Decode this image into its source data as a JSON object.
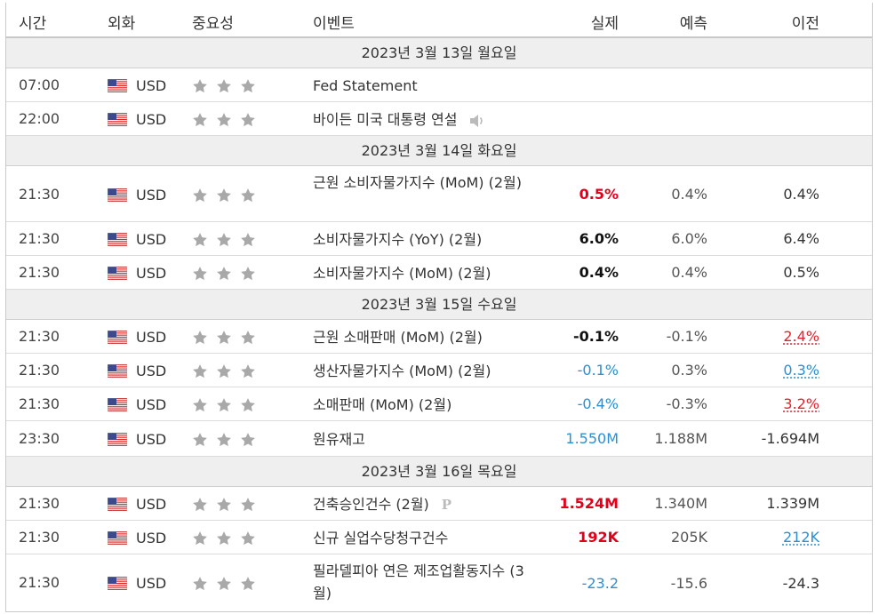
{
  "header": {
    "time": "시간",
    "currency": "외화",
    "importance": "중요성",
    "event": "이벤트",
    "actual": "실제",
    "forecast": "예측",
    "previous": "이전"
  },
  "days": [
    {
      "date": "2023년 3월 13일 월요일"
    },
    {
      "date": "2023년 3월 14일 화요일"
    },
    {
      "date": "2023년 3월 15일 수요일"
    },
    {
      "date": "2023년 3월 16일 목요일"
    }
  ],
  "events": [
    {
      "time": "07:00",
      "currency": "USD",
      "flag_icon": "us-flag-icon",
      "stars": 3,
      "name": "Fed Statement",
      "actual": "",
      "forecast": "",
      "previous": ""
    },
    {
      "time": "22:00",
      "currency": "USD",
      "flag_icon": "us-flag-icon",
      "stars": 3,
      "name": "바이든 미국 대통령 연설",
      "icon": "speaker-icon",
      "actual": "",
      "forecast": "",
      "previous": ""
    },
    {
      "time": "21:30",
      "currency": "USD",
      "flag_icon": "us-flag-icon",
      "stars": 3,
      "name": "근원 소비자물가지수 (MoM) (2월)",
      "actual": "0.5%",
      "actual_color": "#e0001c",
      "forecast": "0.4%",
      "previous": "0.4%"
    },
    {
      "time": "21:30",
      "currency": "USD",
      "flag_icon": "us-flag-icon",
      "stars": 3,
      "name": "소비자물가지수 (YoY) (2월)",
      "actual": "6.0%",
      "forecast": "6.0%",
      "previous": "6.4%"
    },
    {
      "time": "21:30",
      "currency": "USD",
      "flag_icon": "us-flag-icon",
      "stars": 3,
      "name": "소비자물가지수 (MoM) (2월)",
      "actual": "0.4%",
      "forecast": "0.4%",
      "previous": "0.5%"
    },
    {
      "time": "21:30",
      "currency": "USD",
      "flag_icon": "us-flag-icon",
      "stars": 3,
      "name": "근원 소매판매 (MoM) (2월)",
      "actual": "-0.1%",
      "forecast": "-0.1%",
      "previous": "2.4%",
      "previous_color": "#e0232e"
    },
    {
      "time": "21:30",
      "currency": "USD",
      "flag_icon": "us-flag-icon",
      "stars": 3,
      "name": "생산자물가지수 (MoM) (2월)",
      "actual": "-0.1%",
      "actual_color": "#2a8fd4",
      "forecast": "0.3%",
      "previous": "0.3%",
      "previous_color": "#2a8fd4"
    },
    {
      "time": "21:30",
      "currency": "USD",
      "flag_icon": "us-flag-icon",
      "stars": 3,
      "name": "소매판매 (MoM) (2월)",
      "actual": "-0.4%",
      "actual_color": "#2a8fd4",
      "forecast": "-0.3%",
      "previous": "3.2%",
      "previous_color": "#e0232e"
    },
    {
      "time": "23:30",
      "currency": "USD",
      "flag_icon": "us-flag-icon",
      "stars": 3,
      "name": "원유재고",
      "actual": "1.550M",
      "actual_color": "#2a8fd4",
      "forecast": "1.188M",
      "previous": "-1.694M"
    },
    {
      "time": "21:30",
      "currency": "USD",
      "flag_icon": "us-flag-icon",
      "stars": 3,
      "name": "건축승인건수 (2월)",
      "icon": "preliminary-icon",
      "icon_text": "P",
      "actual": "1.524M",
      "actual_color": "#e0001c",
      "forecast": "1.340M",
      "previous": "1.339M"
    },
    {
      "time": "21:30",
      "currency": "USD",
      "flag_icon": "us-flag-icon",
      "stars": 3,
      "name": "신규 실업수당청구건수",
      "actual": "192K",
      "actual_color": "#e0001c",
      "forecast": "205K",
      "previous": "212K",
      "previous_color": "#2a8fd4"
    },
    {
      "time": "21:30",
      "currency": "USD",
      "flag_icon": "us-flag-icon",
      "stars": 3,
      "name": "필라델피아 연은 제조업활동지수 (3월)",
      "actual": "-23.2",
      "actual_color": "#2a8fd4",
      "forecast": "-15.6",
      "previous": "-24.3"
    }
  ]
}
